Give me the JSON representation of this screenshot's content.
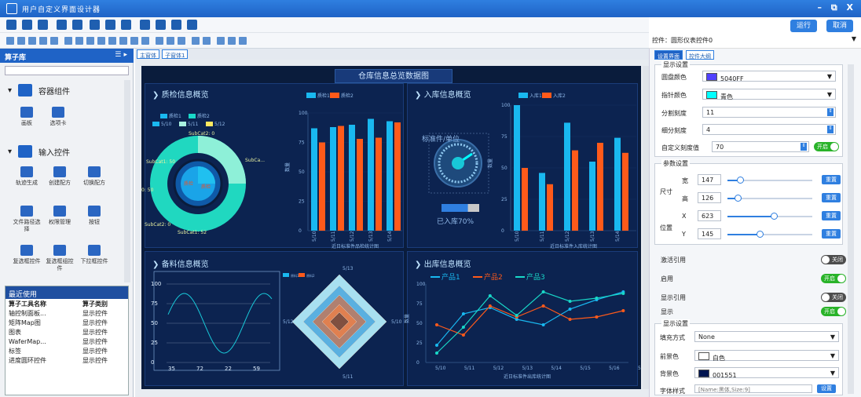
{
  "window": {
    "title": "用户自定义界面设计器",
    "controls": "– ⧉ X"
  },
  "topright": {
    "run": "运行",
    "cancel": "取消",
    "control_label": "控件：圆形仪表控件0"
  },
  "left": {
    "header": "算子库",
    "cat1": "容器组件",
    "cat2": "输入控件",
    "items": [
      "画板",
      "选项卡",
      "轨迹生成",
      "创建配方",
      "切换配方",
      "文件路径选择",
      "权限管理",
      "按钮",
      "复选框控件",
      "复选框组控件",
      "下拉框控件"
    ],
    "recent": {
      "title": "最近使用",
      "col1": "算子工具名称",
      "col2": "算子类别",
      "rows": [
        [
          "轴控制面板...",
          "显示控件"
        ],
        [
          "矩阵Map图",
          "显示控件"
        ],
        [
          "图表",
          "显示控件"
        ],
        [
          "WaferMap...",
          "显示控件"
        ],
        [
          "标签",
          "显示控件"
        ],
        [
          "进度圆环控件",
          "显示控件"
        ]
      ]
    }
  },
  "canvas": {
    "tabs": [
      "主窗体",
      "子窗体1"
    ],
    "main_title": "仓库信息总览数据图",
    "p1": "质检信息概览",
    "p2": "入库信息概览",
    "p3": "备料信息概览",
    "p4": "出库信息概览",
    "gauge": {
      "label": "标准件/单位",
      "progress": 0.7,
      "text": "已入库70%"
    }
  },
  "chart_data": [
    {
      "type": "pie",
      "title": "",
      "legend": [
        "质检1",
        "质检2",
        "5/10",
        "5/11",
        "5/12"
      ],
      "labels": [
        "SubCat2: 0",
        "SubCat1: 50",
        "SubCa...",
        "0: 50",
        "SubCat2: 0",
        "SubCat1: 52"
      ],
      "inner_labels": [
        "质检",
        "质检"
      ]
    },
    {
      "type": "bar",
      "xlabel": "近日标准件品检统计图",
      "ylabel": "数量",
      "categories": [
        "5/10",
        "5/11",
        "5/12",
        "5/13",
        "5/14"
      ],
      "ylim": [
        0,
        100
      ],
      "series": [
        {
          "name": "质检1",
          "values": [
            87,
            88,
            90,
            95,
            93
          ]
        },
        {
          "name": "质检2",
          "values": [
            75,
            89,
            78,
            79,
            92
          ]
        }
      ]
    },
    {
      "type": "bar",
      "xlabel": "近日标准件入库统计图",
      "ylabel": "数量",
      "categories": [
        "5/10",
        "5/11",
        "5/12",
        "5/13",
        "5/14"
      ],
      "ylim": [
        0,
        100
      ],
      "series": [
        {
          "name": "入库1",
          "values": [
            100,
            46,
            86,
            55,
            74
          ]
        },
        {
          "name": "入库2",
          "values": [
            50,
            37,
            64,
            70,
            62
          ]
        }
      ]
    },
    {
      "type": "line",
      "x": [
        35,
        72,
        22,
        59
      ],
      "ylim": [
        0,
        100
      ],
      "yticks": [
        0,
        25,
        50,
        75,
        100
      ]
    },
    {
      "type": "radar",
      "legend": [
        "原料1",
        "原料2"
      ],
      "labels": [
        "5/13",
        "5/10",
        "5/11",
        "5/12"
      ]
    },
    {
      "type": "line",
      "xlabel": "近日标准件出库统计图",
      "ylabel": "数量",
      "categories": [
        "5/10",
        "5/11",
        "5/12",
        "5/13",
        "5/14",
        "5/15",
        "5/16",
        "5/17"
      ],
      "ylim": [
        0,
        100
      ],
      "series": [
        {
          "name": "产品1",
          "values": [
            22,
            62,
            70,
            55,
            48,
            68,
            80,
            90
          ]
        },
        {
          "name": "产品2",
          "values": [
            48,
            35,
            72,
            58,
            72,
            55,
            58,
            66
          ]
        },
        {
          "name": "产品3",
          "values": [
            12,
            45,
            85,
            60,
            90,
            78,
            82,
            88
          ]
        }
      ]
    }
  ],
  "right": {
    "tabs": [
      "设置界面",
      "控件大纲"
    ],
    "display": {
      "title": "显示设置",
      "dial_color_label": "圆盘颜色",
      "dial_color": "5040FF",
      "needle_label": "指针颜色",
      "needle_color": "青色",
      "div_label": "分割刻度",
      "div_val": "11",
      "sub_label": "细分刻度",
      "sub_val": "4",
      "custom_label": "自定义刻度值",
      "custom_val": "70",
      "on": "开启"
    },
    "params": {
      "title": "参数设置",
      "size": "尺寸",
      "w": "宽",
      "h": "高",
      "wv": "147",
      "hv": "126",
      "pos": "位置",
      "x": "X",
      "y": "Y",
      "xv": "623",
      "yv": "145",
      "reset": "重置"
    },
    "flags": [
      {
        "label": "激活引用",
        "state": "关闭"
      },
      {
        "label": "启用",
        "state": "开启"
      },
      {
        "label": "显示引用",
        "state": "关闭"
      },
      {
        "label": "显示",
        "state": "开启"
      }
    ],
    "display2": {
      "title": "显示设置",
      "fill_label": "填充方式",
      "fill_val": "None",
      "fg_label": "前景色",
      "fg_val": "白色",
      "bg_label": "背景色",
      "bg_val": "001551",
      "font_label": "字体样式",
      "font_val": "[Name:黑体,Size:9]",
      "font_btn": "设置"
    },
    "colors": {
      "dial": "#5040ff",
      "needle": "#00ffff",
      "bg": "#001551"
    }
  }
}
